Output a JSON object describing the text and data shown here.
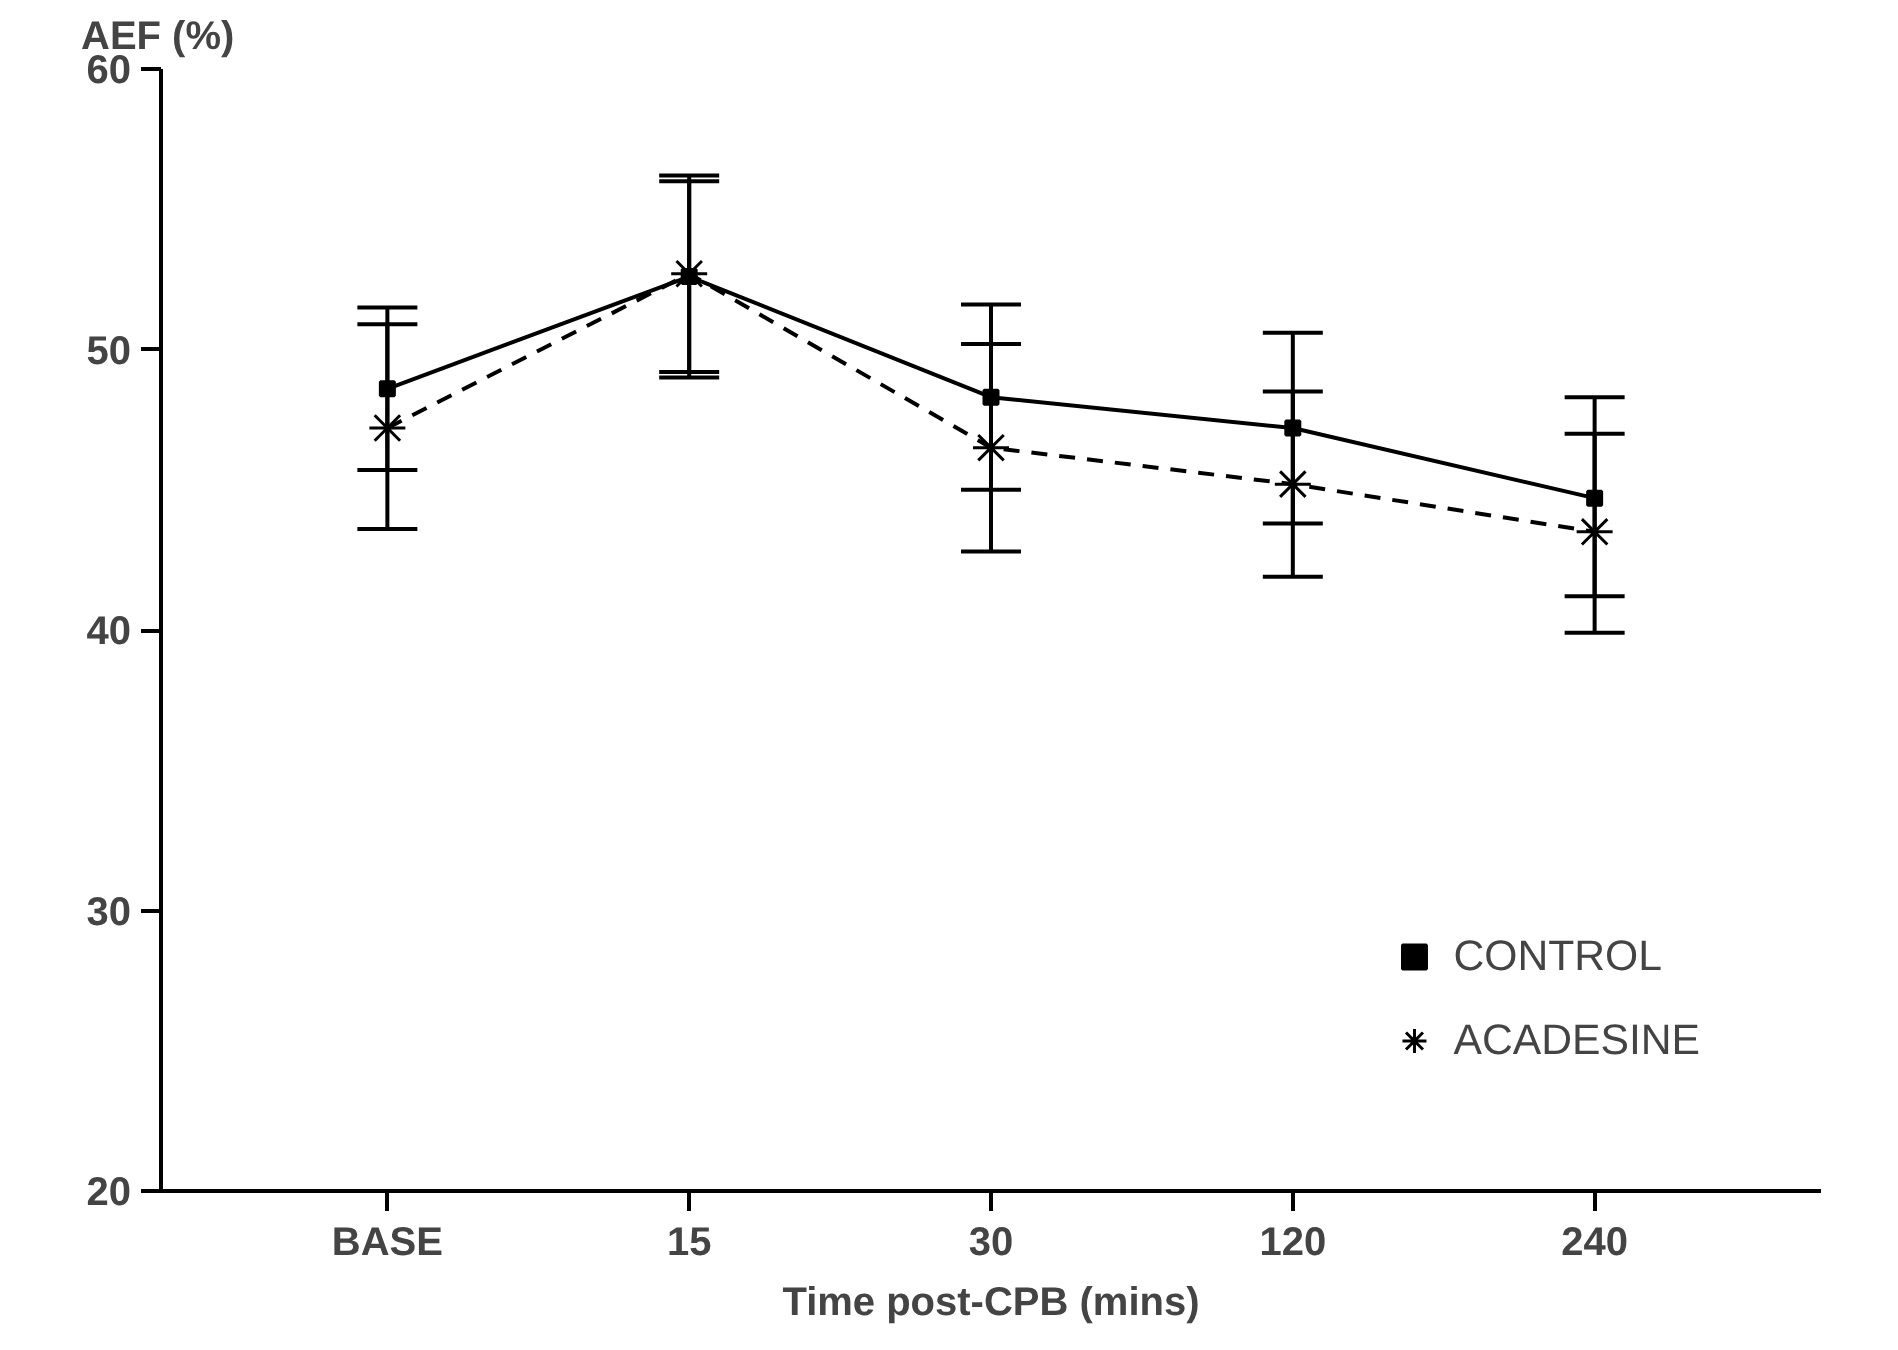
{
  "chart_data": {
    "type": "line",
    "xlabel": "Time post-CPB (mins)",
    "ylabel": "AEF (%)",
    "categories": [
      "BASE",
      "15",
      "30",
      "120",
      "240"
    ],
    "series": [
      {
        "name": "CONTROL",
        "color": "#000000",
        "marker": "square",
        "line_style": "solid",
        "values": [
          48.6,
          52.6,
          48.3,
          47.2,
          44.7
        ],
        "errors": [
          [
            45.7,
            51.5
          ],
          [
            49.2,
            56.0
          ],
          [
            45.0,
            51.6
          ],
          [
            43.8,
            50.6
          ],
          [
            41.2,
            48.3
          ]
        ]
      },
      {
        "name": "ACADESINE",
        "color": "#000000",
        "marker": "cross",
        "line_style": "dashed",
        "values": [
          47.2,
          52.7,
          46.5,
          45.2,
          43.5
        ],
        "errors": [
          [
            43.6,
            50.9
          ],
          [
            49.0,
            56.2
          ],
          [
            42.8,
            50.2
          ],
          [
            41.9,
            48.5
          ],
          [
            39.9,
            47.0
          ]
        ]
      }
    ],
    "ylim": [
      20,
      60
    ],
    "yticks": [
      20,
      30,
      40,
      50,
      60
    ],
    "grid": false,
    "legend": "bottom right"
  }
}
